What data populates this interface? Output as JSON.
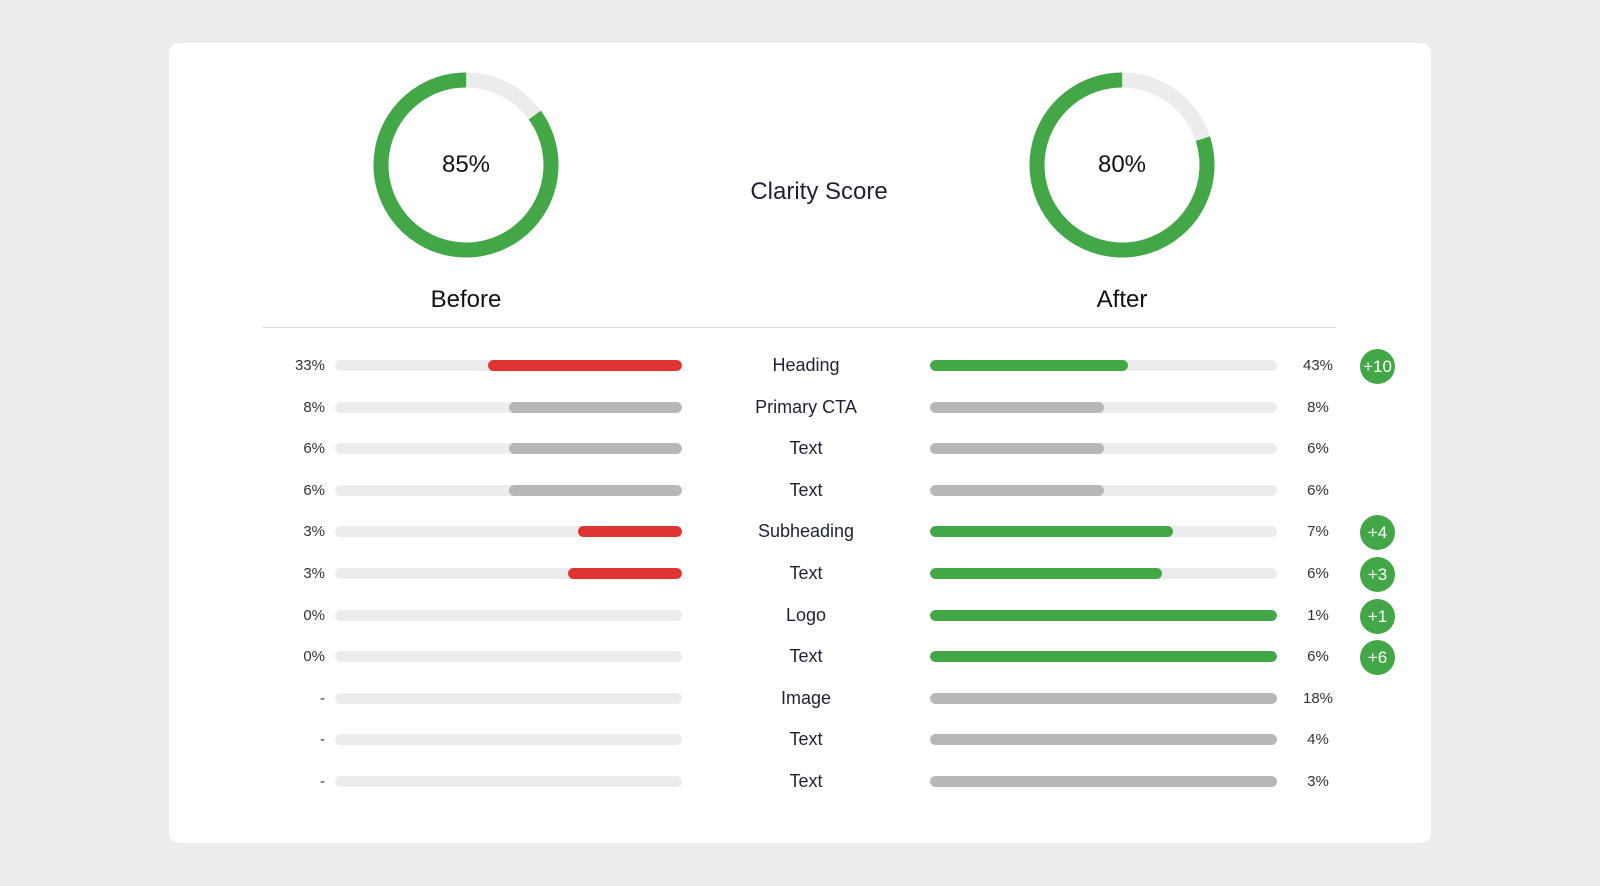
{
  "title": "Clarity Score",
  "colors": {
    "green": "#43a748",
    "red": "#e03433",
    "gray": "#b7b7b7",
    "track": "#ececec"
  },
  "before": {
    "label": "Before",
    "value_text": "85%",
    "value": 85
  },
  "after": {
    "label": "After",
    "value_text": "80%",
    "value": 80
  },
  "rows": [
    {
      "label": "Heading",
      "before_pct": "33%",
      "before_fill": 0.56,
      "before_color": "red",
      "after_pct": "43%",
      "after_fill": 0.57,
      "after_color": "green",
      "delta": "+10"
    },
    {
      "label": "Primary CTA",
      "before_pct": "8%",
      "before_fill": 0.5,
      "before_color": "gray",
      "after_pct": "8%",
      "after_fill": 0.5,
      "after_color": "gray",
      "delta": ""
    },
    {
      "label": "Text",
      "before_pct": "6%",
      "before_fill": 0.5,
      "before_color": "gray",
      "after_pct": "6%",
      "after_fill": 0.5,
      "after_color": "gray",
      "delta": ""
    },
    {
      "label": "Text",
      "before_pct": "6%",
      "before_fill": 0.5,
      "before_color": "gray",
      "after_pct": "6%",
      "after_fill": 0.5,
      "after_color": "gray",
      "delta": ""
    },
    {
      "label": "Subheading",
      "before_pct": "3%",
      "before_fill": 0.3,
      "before_color": "red",
      "after_pct": "7%",
      "after_fill": 0.7,
      "after_color": "green",
      "delta": "+4"
    },
    {
      "label": "Text",
      "before_pct": "3%",
      "before_fill": 0.33,
      "before_color": "red",
      "after_pct": "6%",
      "after_fill": 0.67,
      "after_color": "green",
      "delta": "+3"
    },
    {
      "label": "Logo",
      "before_pct": "0%",
      "before_fill": 0,
      "before_color": "gray",
      "after_pct": "1%",
      "after_fill": 1.0,
      "after_color": "green",
      "delta": "+1"
    },
    {
      "label": "Text",
      "before_pct": "0%",
      "before_fill": 0,
      "before_color": "gray",
      "after_pct": "6%",
      "after_fill": 1.0,
      "after_color": "green",
      "delta": "+6"
    },
    {
      "label": "Image",
      "before_pct": "-",
      "before_fill": 0,
      "before_color": "gray",
      "after_pct": "18%",
      "after_fill": 1.0,
      "after_color": "gray",
      "delta": ""
    },
    {
      "label": "Text",
      "before_pct": "-",
      "before_fill": 0,
      "before_color": "gray",
      "after_pct": "4%",
      "after_fill": 1.0,
      "after_color": "gray",
      "delta": ""
    },
    {
      "label": "Text",
      "before_pct": "-",
      "before_fill": 0,
      "before_color": "gray",
      "after_pct": "3%",
      "after_fill": 1.0,
      "after_color": "gray",
      "delta": ""
    }
  ]
}
